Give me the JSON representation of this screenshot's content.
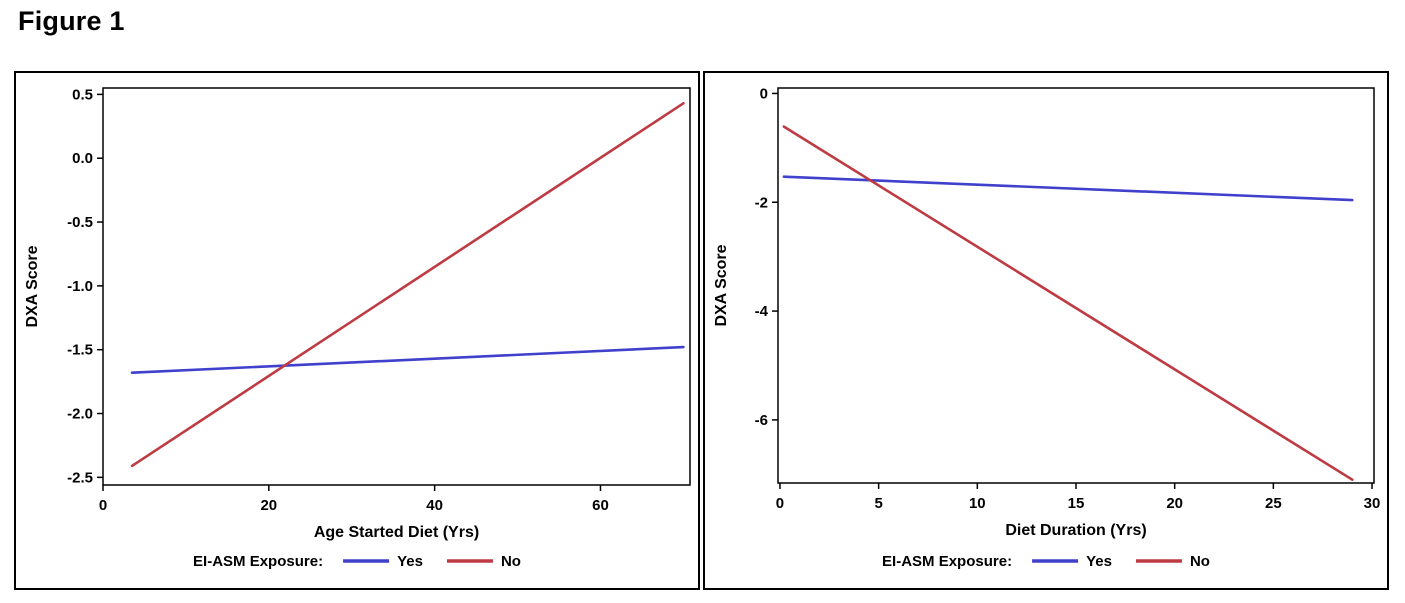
{
  "figure_title": "Figure 1",
  "colors": {
    "yes_line": "#4040CC",
    "no_line": "#BE3B43",
    "axis": "#000000",
    "panel_border": "#000000",
    "background": "#FFFFFF"
  },
  "chart_data": [
    {
      "type": "line",
      "title": "",
      "xlabel": "Age Started Diet (Yrs)",
      "ylabel": "DXA Score",
      "xlim": [
        0,
        70.8
      ],
      "ylim": [
        -2.56,
        0.55
      ],
      "xticks": [
        0,
        20,
        40,
        60
      ],
      "xtick_labels": [
        "0",
        "20",
        "40",
        "60"
      ],
      "yticks": [
        0.5,
        0.0,
        -0.5,
        -1.0,
        -1.5,
        -2.0,
        -2.5
      ],
      "ytick_labels": [
        "0.5",
        "0.0",
        "-0.5",
        "-1.0",
        "-1.5",
        "-2.0",
        "-2.5"
      ],
      "grid": false,
      "legend_label": "EI-ASM Exposure:",
      "legend_position": "bottom-center",
      "series": [
        {
          "name": "Yes",
          "color": "#4040CC",
          "x": [
            3.5,
            70
          ],
          "y": [
            -1.68,
            -1.48
          ]
        },
        {
          "name": "No",
          "color": "#BE3B43",
          "x": [
            3.5,
            70
          ],
          "y": [
            -2.41,
            0.43
          ]
        }
      ]
    },
    {
      "type": "line",
      "title": "",
      "xlabel": "Diet Duration (Yrs)",
      "ylabel": "DXA Score",
      "xlim": [
        -0.1,
        30.1
      ],
      "ylim": [
        -7.16,
        0.1
      ],
      "xticks": [
        0,
        5,
        10,
        15,
        20,
        25,
        30
      ],
      "xtick_labels": [
        "0",
        "5",
        "10",
        "15",
        "20",
        "25",
        "30"
      ],
      "yticks": [
        0,
        -2,
        -4,
        -6
      ],
      "ytick_labels": [
        "0",
        "-2",
        "-4",
        "-6"
      ],
      "grid": false,
      "legend_label": "EI-ASM Exposure:",
      "legend_position": "bottom-center",
      "series": [
        {
          "name": "Yes",
          "color": "#4040CC",
          "x": [
            0.2,
            29
          ],
          "y": [
            -1.53,
            -1.96
          ]
        },
        {
          "name": "No",
          "color": "#BE3B43",
          "x": [
            0.2,
            29
          ],
          "y": [
            -0.61,
            -7.1
          ]
        }
      ]
    }
  ]
}
